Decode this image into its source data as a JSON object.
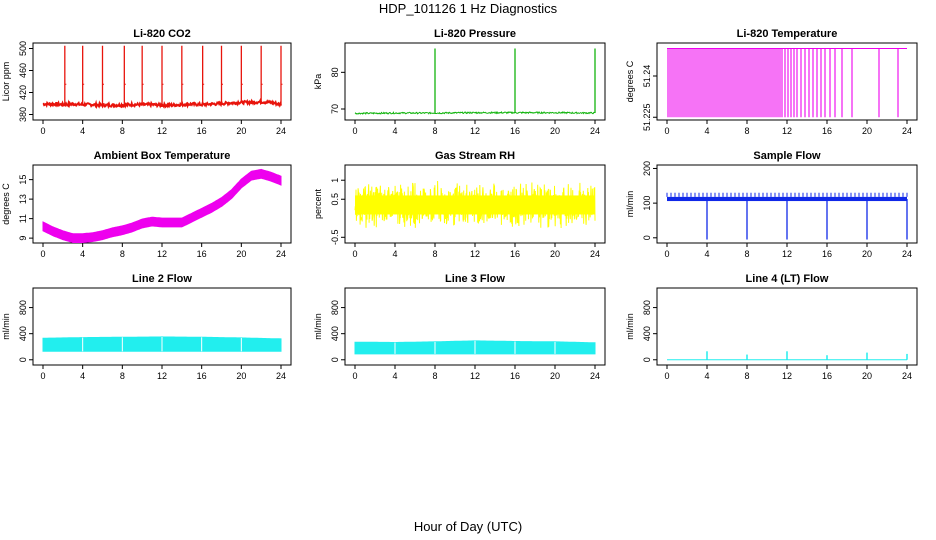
{
  "figure": {
    "title": "HDP_101126  1 Hz Diagnostics",
    "xlabel": "Hour of Day (UTC)"
  },
  "chart_data": [
    {
      "type": "line",
      "title": "Li-820 CO2",
      "ylabel": "Licor ppm",
      "color": "#e8140c",
      "xlim": [
        0,
        24
      ],
      "ylim": [
        370,
        510
      ],
      "xticks": [
        0,
        4,
        8,
        12,
        16,
        20,
        24
      ],
      "yticks": [
        380,
        420,
        460,
        500
      ],
      "x": [
        0,
        1,
        2,
        3,
        4,
        5,
        6,
        7,
        8,
        9,
        10,
        11,
        12,
        13,
        14,
        15,
        16,
        17,
        18,
        19,
        20,
        21,
        22,
        23,
        24
      ],
      "values": [
        399,
        399,
        398,
        399,
        398,
        398,
        397,
        397,
        397,
        398,
        398,
        398,
        397,
        397,
        398,
        399,
        398,
        399,
        400,
        401,
        402,
        402,
        403,
        402,
        398
      ],
      "spikes": [
        {
          "x": 2.2,
          "y": 505
        },
        {
          "x": 4.0,
          "y": 505
        },
        {
          "x": 6.0,
          "y": 505
        },
        {
          "x": 8.2,
          "y": 505
        },
        {
          "x": 10.0,
          "y": 505
        },
        {
          "x": 12.0,
          "y": 505
        },
        {
          "x": 14.0,
          "y": 505
        },
        {
          "x": 16.1,
          "y": 505
        },
        {
          "x": 18.0,
          "y": 505
        },
        {
          "x": 20.0,
          "y": 505
        },
        {
          "x": 22.0,
          "y": 505
        },
        {
          "x": 24.0,
          "y": 505
        }
      ]
    },
    {
      "type": "line",
      "title": "Li-820 Pressure",
      "ylabel": "kPa",
      "color": "#12b40e",
      "xlim": [
        0,
        24
      ],
      "ylim": [
        67,
        88
      ],
      "xticks": [
        0,
        4,
        8,
        12,
        16,
        20,
        24
      ],
      "yticks": [
        70,
        80
      ],
      "x": [
        0,
        4,
        8,
        12,
        16,
        20,
        24
      ],
      "values": [
        68.8,
        68.9,
        68.9,
        69.0,
        69.0,
        69.0,
        68.9
      ],
      "spikes": [
        {
          "x": 8.0,
          "y": 86.5
        },
        {
          "x": 16.0,
          "y": 86.5
        },
        {
          "x": 24.0,
          "y": 86.5
        }
      ]
    },
    {
      "type": "line",
      "title": "Li-820 Temperature",
      "ylabel": "degrees C",
      "color": "#ee00ee",
      "xlim": [
        0,
        24
      ],
      "ylim": [
        51.224,
        51.252
      ],
      "xticks": [
        0,
        4,
        8,
        12,
        16,
        20,
        24
      ],
      "yticks": [
        51.225,
        51.24
      ],
      "baseline": 51.25,
      "drops": [
        0.1,
        0.3,
        0.5,
        0.7,
        0.9,
        1.1,
        1.3,
        1.5,
        1.7,
        1.9,
        2.1,
        2.3,
        2.5,
        2.7,
        2.9,
        3.1,
        3.3,
        3.5,
        3.7,
        3.9,
        4.1,
        4.3,
        4.5,
        4.7,
        4.9,
        5.1,
        5.3,
        5.5,
        5.7,
        5.9,
        6.1,
        6.3,
        6.5,
        6.7,
        6.9,
        7.1,
        7.3,
        7.5,
        7.7,
        7.9,
        8.1,
        8.3,
        8.5,
        8.7,
        8.9,
        9.1,
        9.3,
        9.5,
        9.7,
        9.9,
        10.1,
        10.3,
        10.5,
        10.7,
        10.9,
        11.1,
        11.3,
        11.5,
        11.8,
        12.1,
        12.4,
        12.7,
        13.0,
        13.4,
        13.8,
        14.2,
        14.6,
        15.0,
        15.4,
        15.8,
        16.3,
        16.8,
        17.5,
        18.5,
        21.2,
        23.1
      ],
      "drop_to": 51.225
    },
    {
      "type": "line",
      "title": "Ambient Box Temperature",
      "ylabel": "degrees C",
      "color": "#ee00ee",
      "xlim": [
        0,
        24
      ],
      "ylim": [
        8.5,
        16.5
      ],
      "xticks": [
        0,
        4,
        8,
        12,
        16,
        20,
        24
      ],
      "yticks": [
        9,
        11,
        13,
        15
      ],
      "x": [
        0,
        1,
        2,
        3,
        4,
        5,
        6,
        7,
        8,
        9,
        10,
        11,
        12,
        13,
        14,
        15,
        16,
        17,
        18,
        19,
        20,
        21,
        22,
        23,
        24
      ],
      "values": [
        10.2,
        9.7,
        9.3,
        9.0,
        9.0,
        9.1,
        9.3,
        9.6,
        9.8,
        10.1,
        10.5,
        10.7,
        10.6,
        10.6,
        10.6,
        11.1,
        11.6,
        12.1,
        12.7,
        13.5,
        14.6,
        15.4,
        15.6,
        15.3,
        14.9
      ],
      "band": 0.45
    },
    {
      "type": "line",
      "title": "Gas Stream RH",
      "ylabel": "percent",
      "color": "#ffff00",
      "xlim": [
        0,
        24
      ],
      "ylim": [
        -0.65,
        1.4
      ],
      "xticks": [
        0,
        4,
        8,
        12,
        16,
        20,
        24
      ],
      "yticks": [
        -0.5,
        0.5,
        1
      ],
      "mean": 0.35,
      "noise": 0.55
    },
    {
      "type": "line",
      "title": "Sample Flow",
      "ylabel": "ml/min",
      "color": "#1028e8",
      "xlim": [
        0,
        24
      ],
      "ylim": [
        -15,
        210
      ],
      "xticks": [
        0,
        4,
        8,
        12,
        16,
        20,
        24
      ],
      "yticks": [
        0,
        100,
        200
      ],
      "values_level": 112,
      "drops": [
        {
          "x": 4.0,
          "y": -5
        },
        {
          "x": 8.0,
          "y": -5
        },
        {
          "x": 12.0,
          "y": -5
        },
        {
          "x": 16.0,
          "y": -5
        },
        {
          "x": 20.0,
          "y": -5
        },
        {
          "x": 24.0,
          "y": -5
        }
      ]
    },
    {
      "type": "area",
      "title": "Line 2 Flow",
      "ylabel": "ml/min",
      "color": "#22eeee",
      "xlim": [
        0,
        24
      ],
      "ylim": [
        -80,
        1100
      ],
      "xticks": [
        0,
        4,
        8,
        12,
        16,
        20,
        24
      ],
      "yticks": [
        0,
        400,
        800
      ],
      "low": 130,
      "x": [
        0,
        4,
        8,
        12,
        16,
        20,
        24
      ],
      "values": [
        330,
        340,
        345,
        350,
        345,
        335,
        320
      ]
    },
    {
      "type": "area",
      "title": "Line 3 Flow",
      "ylabel": "ml/min",
      "color": "#22eeee",
      "xlim": [
        0,
        24
      ],
      "ylim": [
        -80,
        1100
      ],
      "xticks": [
        0,
        4,
        8,
        12,
        16,
        20,
        24
      ],
      "yticks": [
        0,
        400,
        800
      ],
      "low": 90,
      "x": [
        0,
        4,
        8,
        12,
        16,
        20,
        24
      ],
      "values": [
        270,
        265,
        275,
        290,
        280,
        275,
        260
      ]
    },
    {
      "type": "line",
      "title": "Line 4 (LT) Flow",
      "ylabel": "ml/min",
      "color": "#22eeee",
      "xlim": [
        0,
        24
      ],
      "ylim": [
        -80,
        1100
      ],
      "xticks": [
        0,
        4,
        8,
        12,
        16,
        20,
        24
      ],
      "yticks": [
        0,
        400,
        800
      ],
      "level": 0,
      "spikes": [
        {
          "x": 4.0,
          "y": 130
        },
        {
          "x": 8.0,
          "y": 80
        },
        {
          "x": 12.0,
          "y": 130
        },
        {
          "x": 16.0,
          "y": 70
        },
        {
          "x": 20.0,
          "y": 110
        },
        {
          "x": 24.0,
          "y": 90
        }
      ]
    }
  ]
}
